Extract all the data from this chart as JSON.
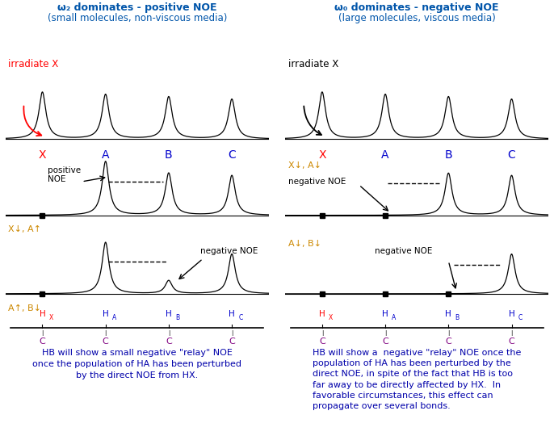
{
  "left_title1": "ω₂ dominates - positive NOE",
  "left_title2": "(small molecules, non-viscous media)",
  "right_title1": "ω₀ dominates - negative NOE",
  "right_title2": "(large molecules, viscous media)",
  "peak_labels": [
    "X",
    "A",
    "B",
    "C"
  ],
  "peak_colors": [
    "#ff0000",
    "#0000cc",
    "#0000cc",
    "#0000cc"
  ],
  "h_colors": [
    "#ff0000",
    "#0000cc",
    "#0000cc",
    "#0000cc"
  ],
  "purple": "#800080",
  "orange": "#cc8800",
  "title_color": "#0055aa",
  "bottom_color": "#0000aa",
  "left_irradiate": "irradiate X",
  "right_irradiate": "irradiate X",
  "bottom_left": "HB will show a small negative \"relay\" NOE\nonce the population of HA has been perturbed\nby the direct NOE from HX.",
  "bottom_right_lines": [
    "HB will show a  negative \"relay\" NOE once the",
    "population of HA has been perturbed by the",
    "direct NOE, in spite of the fact that HB is too",
    "far away to be directly affected by HX.  In",
    "favorable circumstances, this effect can",
    "propagate over several bonds."
  ]
}
